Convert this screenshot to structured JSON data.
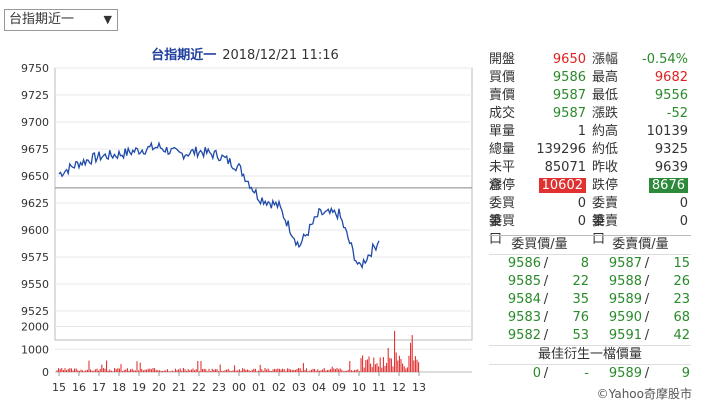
{
  "selector": {
    "label": "台指期近一",
    "arrow": "▼"
  },
  "chart": {
    "name": "台指期近一",
    "timestamp": "2018/12/21 11:16",
    "price_ticks": [
      "9750",
      "9725",
      "9700",
      "9675",
      "9650",
      "9625",
      "9600",
      "9575",
      "9550",
      "9525"
    ],
    "volume_ticks": [
      "2000",
      "1000",
      "0"
    ],
    "time_ticks": [
      "15",
      "16",
      "17",
      "18",
      "19",
      "20",
      "21",
      "22",
      "23",
      "00",
      "01",
      "02",
      "03",
      "04",
      "09",
      "10",
      "11",
      "12",
      "13"
    ],
    "line_color": "#1f4aa8",
    "reference_price": 9639,
    "volume_color": "#e02020"
  },
  "chart_data": {
    "type": "line",
    "title": "台指期近一 2018/12/21 11:16",
    "ylim": [
      9512,
      9752
    ],
    "x_ticks": [
      "15",
      "16",
      "17",
      "18",
      "19",
      "20",
      "21",
      "22",
      "23",
      "00",
      "01",
      "02",
      "03",
      "04",
      "09",
      "10",
      "11",
      "12",
      "13"
    ],
    "series": [
      {
        "x": [
          "15",
          "16",
          "17",
          "18",
          "19",
          "20",
          "21",
          "22",
          "23",
          "00",
          "01",
          "02",
          "03",
          "04",
          "09",
          "10",
          "11"
        ],
        "values": [
          9652,
          9662,
          9668,
          9670,
          9674,
          9677,
          9670,
          9673,
          9669,
          9658,
          9630,
          9622,
          9585,
          9615,
          9615,
          9565,
          9590
        ]
      }
    ],
    "volume": {
      "ylim": [
        0,
        2000
      ],
      "spikes_region": [
        "09",
        "10",
        "11"
      ]
    }
  },
  "quote": {
    "rows": [
      {
        "l1": "開盤",
        "v1": "9650",
        "c1": "red",
        "l2": "漲幅",
        "v2": "-0.54%",
        "c2": "green"
      },
      {
        "l1": "買價",
        "v1": "9586",
        "c1": "green",
        "l2": "最高",
        "v2": "9682",
        "c2": "red"
      },
      {
        "l1": "賣價",
        "v1": "9587",
        "c1": "green",
        "l2": "最低",
        "v2": "9556",
        "c2": "green"
      },
      {
        "l1": "成交",
        "v1": "9587",
        "c1": "green",
        "l2": "漲跌",
        "v2": "-52",
        "c2": "green"
      },
      {
        "l1": "單量",
        "v1": "1",
        "c1": "dark",
        "l2": "約高",
        "v2": "10139",
        "c2": "dark"
      },
      {
        "l1": "總量",
        "v1": "139296",
        "c1": "dark",
        "l2": "約低",
        "v2": "9325",
        "c2": "dark"
      },
      {
        "l1": "未平倉",
        "v1": "85071",
        "c1": "dark",
        "l2": "昨收",
        "v2": "9639",
        "c2": "dark"
      },
      {
        "l1": "漲停",
        "v1": "10602",
        "c1": "badge-red",
        "l2": "跌停",
        "v2": "8676",
        "c2": "badge-green"
      },
      {
        "l1": "委買筆",
        "v1": "0",
        "c1": "dark",
        "l2": "委賣筆",
        "v2": "0",
        "c2": "dark"
      },
      {
        "l1": "委買口",
        "v1": "0",
        "c1": "dark",
        "l2": "委賣口",
        "v2": "0",
        "c2": "dark"
      }
    ]
  },
  "book": {
    "bid_header": "委買價/量",
    "ask_header": "委賣價/量",
    "separator": "/",
    "rows": [
      {
        "bp": "9586",
        "bq": "8",
        "ap": "9587",
        "aq": "15"
      },
      {
        "bp": "9585",
        "bq": "22",
        "ap": "9588",
        "aq": "26"
      },
      {
        "bp": "9584",
        "bq": "35",
        "ap": "9589",
        "aq": "23"
      },
      {
        "bp": "9583",
        "bq": "76",
        "ap": "9590",
        "aq": "68"
      },
      {
        "bp": "9582",
        "bq": "53",
        "ap": "9591",
        "aq": "42"
      }
    ],
    "best_header": "最佳衍生一檔價量",
    "best": {
      "bp": "0",
      "bq": "-",
      "ap": "9589",
      "aq": "9"
    }
  },
  "credit": "©Yahoo奇摩股市"
}
